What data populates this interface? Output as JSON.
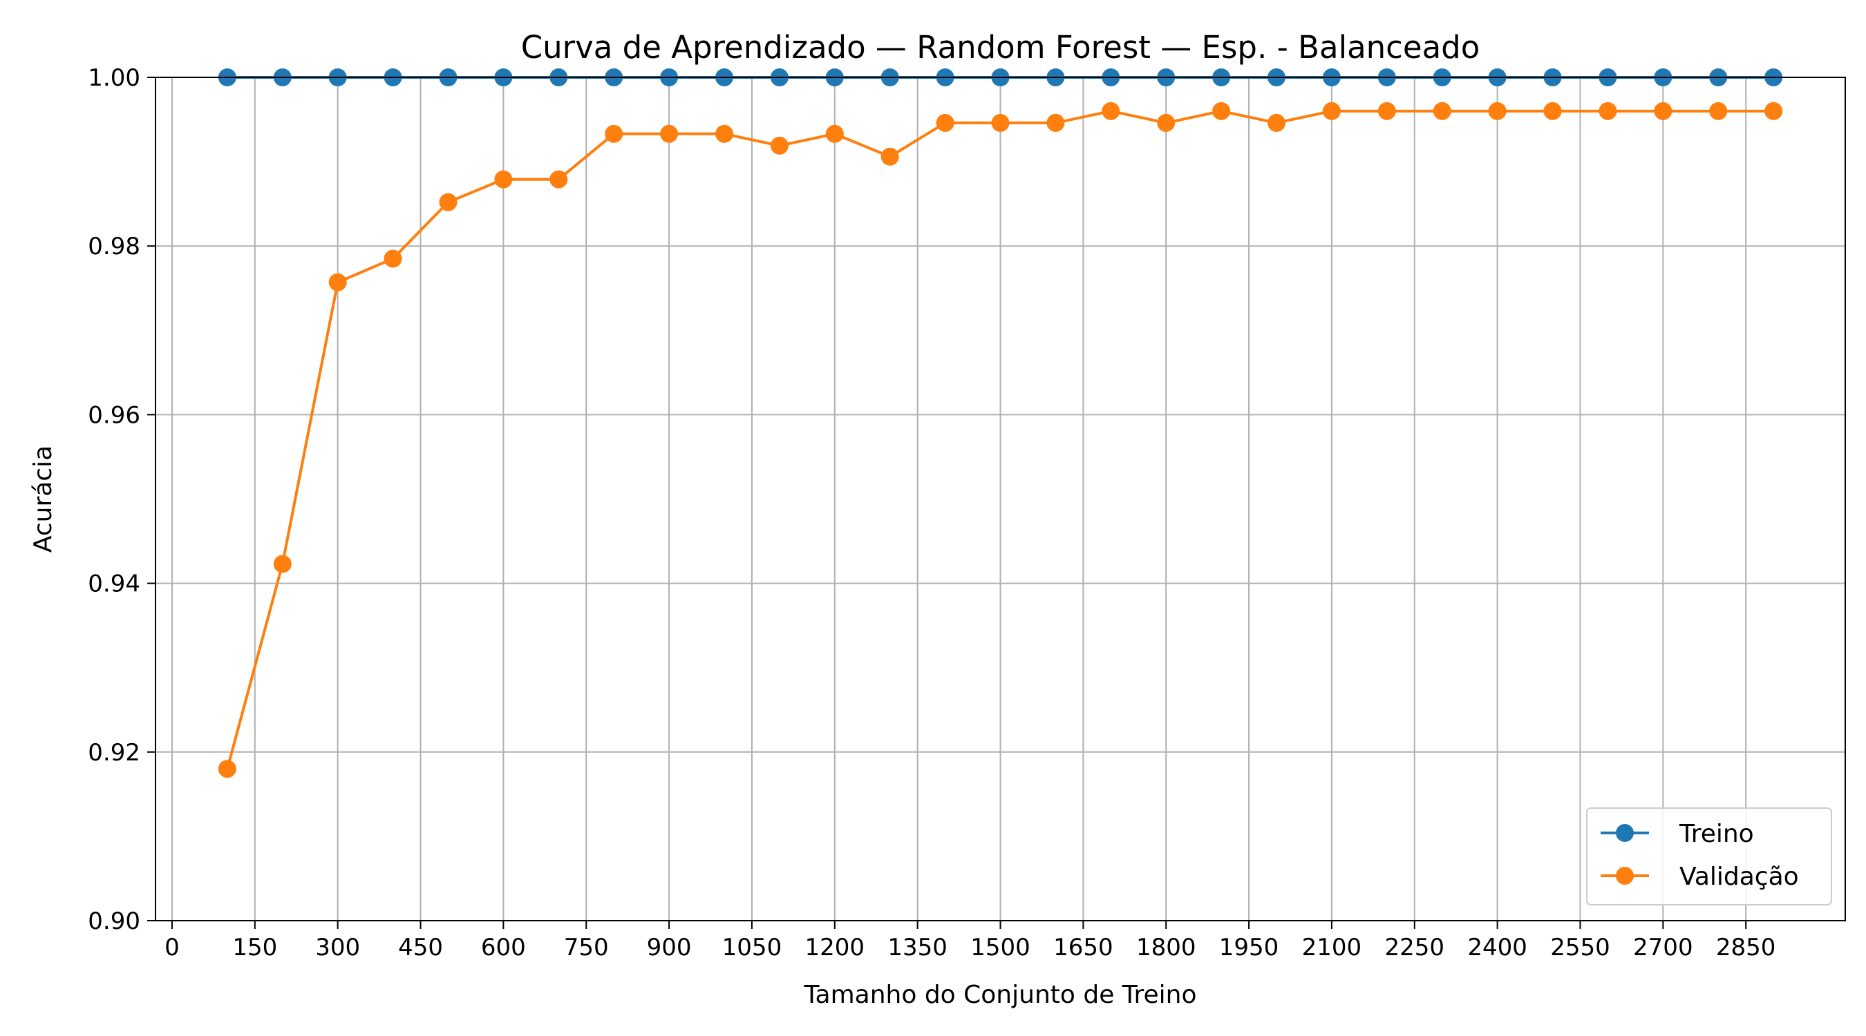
{
  "chart_data": {
    "type": "line",
    "title": "Curva de Aprendizado — Random Forest — Esp. - Balanceado",
    "xlabel": "Tamanho do Conjunto de Treino",
    "ylabel": "Acurácia",
    "xlim": [
      -30,
      3030
    ],
    "ylim": [
      0.9,
      1.0
    ],
    "x_ticks": [
      0,
      150,
      300,
      450,
      600,
      750,
      900,
      1050,
      1200,
      1350,
      1500,
      1650,
      1800,
      1950,
      2100,
      2250,
      2400,
      2550,
      2700,
      2850
    ],
    "y_ticks": [
      0.9,
      0.92,
      0.94,
      0.96,
      0.98,
      1.0
    ],
    "y_tick_labels": [
      "0.90",
      "0.92",
      "0.94",
      "0.96",
      "0.98",
      "1.00"
    ],
    "grid": true,
    "legend_position": "lower-right",
    "x": [
      100,
      200,
      300,
      400,
      500,
      600,
      700,
      800,
      900,
      1000,
      1100,
      1200,
      1300,
      1400,
      1500,
      1600,
      1700,
      1800,
      1900,
      2000,
      2100,
      2200,
      2300,
      2400,
      2500,
      2600,
      2700,
      2800,
      2900
    ],
    "series": [
      {
        "name": "Treino",
        "color": "#1f77b4",
        "values": [
          1.0,
          1.0,
          1.0,
          1.0,
          1.0,
          1.0,
          1.0,
          1.0,
          1.0,
          1.0,
          1.0,
          1.0,
          1.0,
          1.0,
          1.0,
          1.0,
          1.0,
          1.0,
          1.0,
          1.0,
          1.0,
          1.0,
          1.0,
          1.0,
          1.0,
          1.0,
          1.0,
          1.0,
          1.0
        ]
      },
      {
        "name": "Validação",
        "color": "#ff7f0e",
        "values": [
          0.918,
          0.9423,
          0.9757,
          0.9785,
          0.9852,
          0.9879,
          0.9879,
          0.9933,
          0.9933,
          0.9933,
          0.9919,
          0.9933,
          0.9906,
          0.9946,
          0.9946,
          0.9946,
          0.996,
          0.9946,
          0.996,
          0.9946,
          0.996,
          0.996,
          0.996,
          0.996,
          0.996,
          0.996,
          0.996,
          0.996,
          0.996
        ]
      }
    ]
  }
}
